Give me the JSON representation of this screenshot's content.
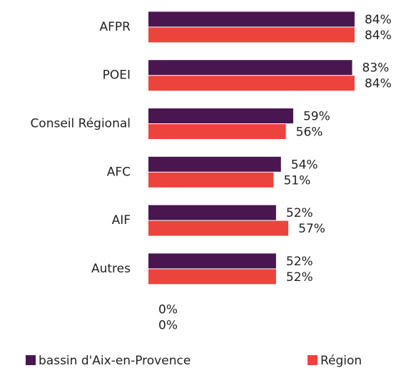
{
  "chart_data": {
    "type": "hbar",
    "categories": [
      "AFPR",
      "POEI",
      "Conseil Régional",
      "AFC",
      "AIF",
      "Autres",
      null
    ],
    "series": [
      {
        "name": "bassin d'Aix-en-Provence",
        "color": "#4a1650",
        "values": [
          84,
          83,
          59,
          54,
          52,
          52,
          0
        ],
        "value_labels": [
          "84%",
          "83%",
          "59%",
          "54%",
          "52%",
          "52%",
          "0%"
        ]
      },
      {
        "name": "Région",
        "color": "#ec443d",
        "values": [
          84,
          84,
          56,
          51,
          57,
          52,
          0
        ],
        "value_labels": [
          "84%",
          "84%",
          "56%",
          "51%",
          "57%",
          "52%",
          "0%"
        ]
      }
    ]
  }
}
